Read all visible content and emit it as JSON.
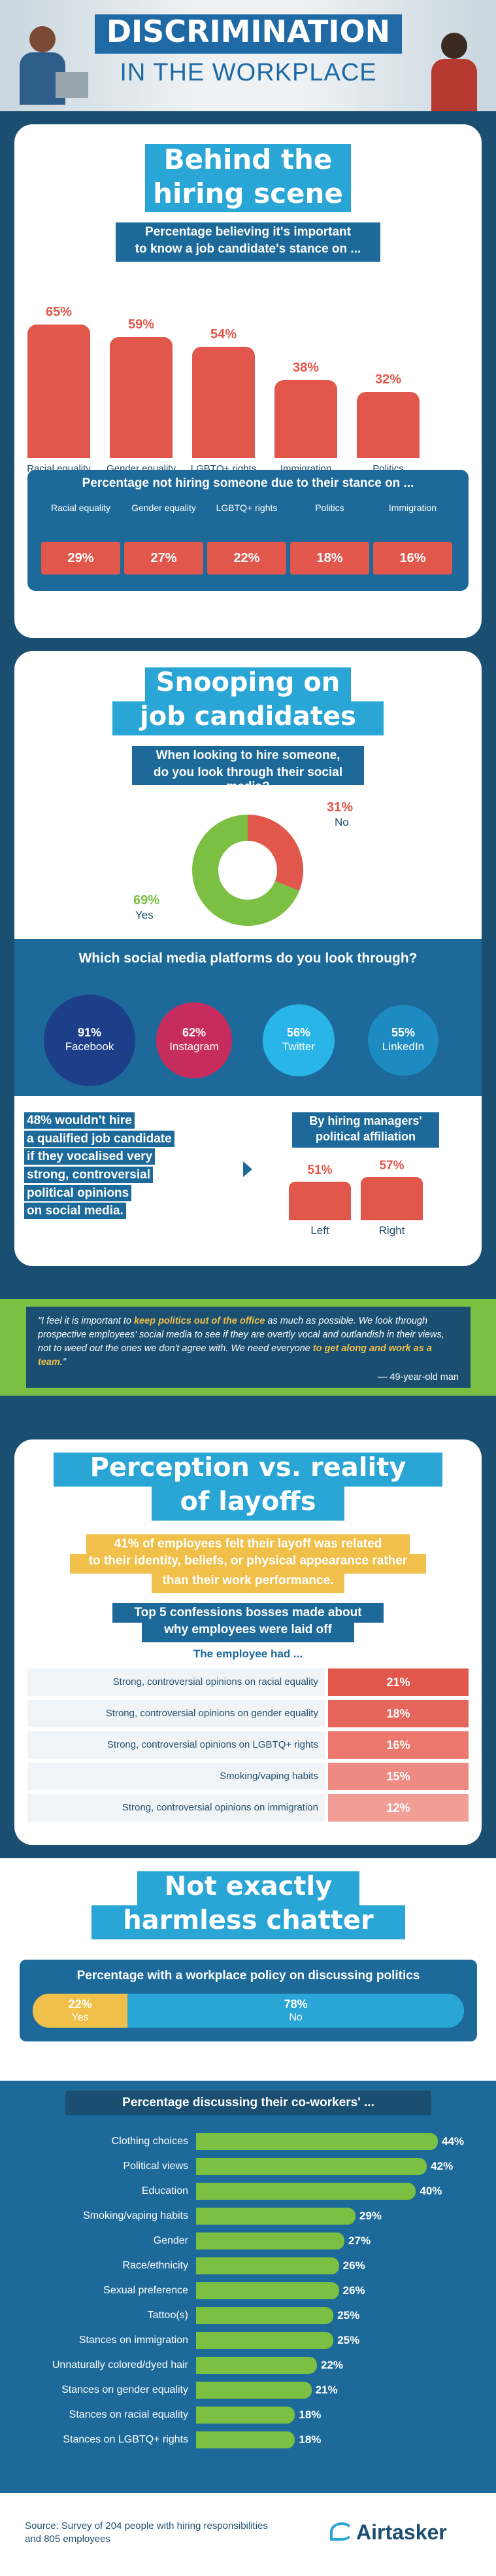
{
  "header": {
    "line1": "DISCRIMINATION",
    "line2": "IN THE WORKPLACE"
  },
  "section1": {
    "title_l1": "Behind the",
    "title_l2": "hiring scene",
    "subtitle_l1": "Percentage believing it's important",
    "subtitle_l2": "to know a job candidate's stance on ...",
    "table_title": "Percentage not hiring someone due to their stance on ..."
  },
  "section2": {
    "title_l1": "Snooping on",
    "title_l2": "job candidates",
    "q_l1": "When looking to hire someone,",
    "q_l2": "do you look through their social media?",
    "platforms_title": "Which social media platforms do you look through?",
    "wouldnt_hire": [
      "48% wouldn't hire",
      "a qualified job candidate",
      "if they vocalised very",
      "strong, controversial",
      "political opinions",
      "on social media."
    ],
    "affil_l1": "By hiring managers'",
    "affil_l2": "political affiliation",
    "quote_parts": [
      "\"I feel it is important to ",
      "keep politics out of the office",
      " as much as possible. We look through prospective employees' social media to see if they are overtly vocal and outlandish in their views, not to weed out the ones we don't agree with. We need everyone ",
      "to get along and work as a team",
      ".\""
    ],
    "quote_author": "— 49-year-old man"
  },
  "section3": {
    "title_l1": "Perception vs. reality",
    "title_l2": "of layoffs",
    "stat_l1": "41% of employees felt their layoff was related",
    "stat_l2": "to their identity, beliefs, or physical appearance rather",
    "stat_l3": "than their work performance.",
    "confess_l1": "Top 5 confessions bosses made about",
    "confess_l2": "why employees were laid off",
    "lead": "The employee had ..."
  },
  "section4": {
    "title_l1": "Not exactly",
    "title_l2": "harmless chatter",
    "policy_title": "Percentage with a workplace policy on discussing politics",
    "coworker_title": "Percentage discussing their co-workers' ..."
  },
  "footer": {
    "source_l1": "Source: Survey of 204 people with hiring responsibilities",
    "source_l2": "and 805 employees",
    "brand": "Airtasker"
  },
  "colors": {
    "navy": "#1b4f72",
    "red": "#e2574c",
    "green": "#7bc043",
    "blue": "#29a6d6",
    "yellow": "#f0c04a"
  },
  "chart_data": [
    {
      "type": "bar",
      "categories": [
        "Racial equality",
        "Gender equality",
        "LGBTQ+ rights",
        "Immigration",
        "Politics"
      ],
      "values": [
        65,
        59,
        54,
        38,
        32
      ],
      "value_labels": [
        "65%",
        "59%",
        "54%",
        "38%",
        "32%"
      ],
      "title": "Percentage believing it's important to know a job candidate's stance on ...",
      "ylim": [
        0,
        70
      ]
    },
    {
      "type": "table",
      "title": "Percentage not hiring someone due to their stance on ...",
      "categories": [
        "Racial equality",
        "Gender equality",
        "LGBTQ+ rights",
        "Politics",
        "Immigration"
      ],
      "values": [
        29,
        27,
        22,
        18,
        16
      ],
      "value_labels": [
        "29%",
        "27%",
        "22%",
        "18%",
        "16%"
      ]
    },
    {
      "type": "pie",
      "title": "When looking to hire someone, do you look through their social media?",
      "labels": [
        "Yes",
        "No"
      ],
      "values": [
        69,
        31
      ],
      "value_labels": [
        "69%",
        "31%"
      ],
      "colors": [
        "#7bc043",
        "#e2574c"
      ]
    },
    {
      "type": "bar",
      "title": "Which social media platforms do you look through?",
      "categories": [
        "Facebook",
        "Instagram",
        "Twitter",
        "LinkedIn"
      ],
      "values": [
        91,
        62,
        56,
        55
      ],
      "value_labels": [
        "91%",
        "62%",
        "56%",
        "55%"
      ],
      "colors": [
        "#1d3f8a",
        "#c72c5e",
        "#29b5e8",
        "#1d8ac2"
      ]
    },
    {
      "type": "bar",
      "title": "By hiring managers' political affiliation",
      "categories": [
        "Left",
        "Right"
      ],
      "values": [
        51,
        57
      ],
      "value_labels": [
        "51%",
        "57%"
      ],
      "ylim": [
        0,
        60
      ]
    },
    {
      "type": "bar",
      "title": "Top 5 confessions bosses made about why employees were laid off",
      "categories": [
        "Strong, controversial opinions on racial equality",
        "Strong, controversial opinions on gender equality",
        "Strong, controversial opinions on LGBTQ+ rights",
        "Smoking/vaping habits",
        "Strong, controversial opinions on immigration"
      ],
      "values": [
        21,
        18,
        16,
        15,
        12
      ],
      "value_labels": [
        "21%",
        "18%",
        "16%",
        "15%",
        "12%"
      ]
    },
    {
      "type": "bar",
      "title": "Percentage with a workplace policy on discussing politics",
      "categories": [
        "Yes",
        "No"
      ],
      "values": [
        22,
        78
      ],
      "value_labels": [
        "22%",
        "78%"
      ],
      "colors": [
        "#f0c04a",
        "#29a6d6"
      ]
    },
    {
      "type": "bar",
      "title": "Percentage discussing their co-workers' ...",
      "categories": [
        "Clothing choices",
        "Political views",
        "Education",
        "Smoking/vaping habits",
        "Gender",
        "Race/ethnicity",
        "Sexual preference",
        "Tattoo(s)",
        "Stances on immigration",
        "Unnaturally colored/dyed hair",
        "Stances on gender equality",
        "Stances on racial equality",
        "Stances on LGBTQ+ rights"
      ],
      "values": [
        44,
        42,
        40,
        29,
        27,
        26,
        26,
        25,
        25,
        22,
        21,
        18,
        18
      ],
      "value_labels": [
        "44%",
        "42%",
        "40%",
        "29%",
        "27%",
        "26%",
        "26%",
        "25%",
        "25%",
        "22%",
        "21%",
        "18%",
        "18%"
      ],
      "xlim": [
        0,
        44
      ]
    }
  ]
}
